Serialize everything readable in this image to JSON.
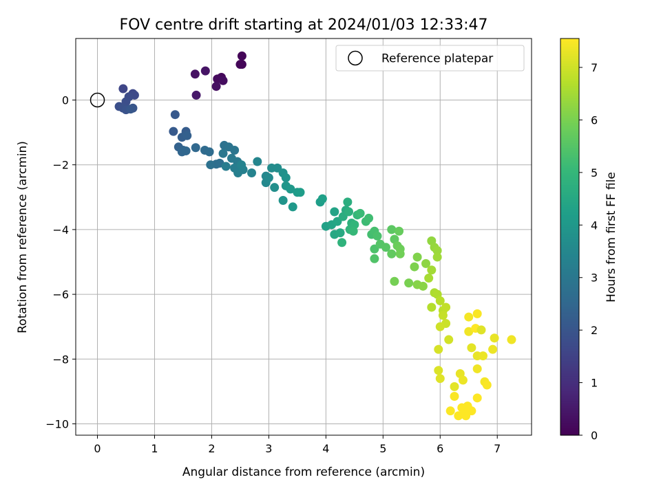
{
  "chart_data": {
    "type": "scatter",
    "title": "FOV centre drift starting at 2024/01/03 12:33:47",
    "xlabel": "Angular distance from reference (arcmin)",
    "ylabel": "Rotation from reference (arcmin)",
    "xlim": [
      -0.38,
      7.6
    ],
    "ylim": [
      -10.35,
      1.9
    ],
    "xticks": [
      0,
      1,
      2,
      3,
      4,
      5,
      6,
      7
    ],
    "yticks": [
      0,
      -2,
      -4,
      -6,
      -8,
      -10
    ],
    "grid": true,
    "legend": {
      "placement": "top-right",
      "entries": [
        "Reference platepar"
      ]
    },
    "colormap": "viridis",
    "colorbar": {
      "label": "Hours from first FF file",
      "range": [
        0,
        7.55
      ],
      "ticks": [
        0,
        1,
        2,
        3,
        4,
        5,
        6,
        7
      ]
    },
    "reference": {
      "name": "Reference platepar",
      "x": 0,
      "y": 0
    },
    "series": [
      {
        "values": [
          [
            2.53,
            1.36,
            0.1
          ],
          [
            2.5,
            1.1,
            0.1
          ],
          [
            2.53,
            1.1,
            0.1
          ],
          [
            2.17,
            0.7,
            0.15
          ],
          [
            2.1,
            0.65,
            0.2
          ],
          [
            2.2,
            0.6,
            0.25
          ],
          [
            2.08,
            0.42,
            0.3
          ],
          [
            1.71,
            0.8,
            0.35
          ],
          [
            1.89,
            0.9,
            0.4
          ],
          [
            1.73,
            0.15,
            0.5
          ],
          [
            0.45,
            0.35,
            1.6
          ],
          [
            0.62,
            0.2,
            1.65
          ],
          [
            0.65,
            0.15,
            1.7
          ],
          [
            0.55,
            0.1,
            1.75
          ],
          [
            0.5,
            -0.05,
            1.8
          ],
          [
            0.38,
            -0.2,
            1.85
          ],
          [
            0.45,
            -0.25,
            1.9
          ],
          [
            0.5,
            -0.3,
            1.95
          ],
          [
            0.62,
            -0.25,
            2.0
          ],
          [
            0.58,
            -0.28,
            2.05
          ],
          [
            1.36,
            -0.45,
            2.1
          ],
          [
            1.33,
            -0.97,
            2.15
          ],
          [
            1.55,
            -0.97,
            2.2
          ],
          [
            1.48,
            -1.15,
            2.25
          ],
          [
            1.57,
            -1.1,
            2.3
          ],
          [
            1.42,
            -1.45,
            2.35
          ],
          [
            1.5,
            -1.55,
            2.4
          ],
          [
            1.48,
            -1.6,
            2.45
          ],
          [
            1.55,
            -1.57,
            2.5
          ],
          [
            1.72,
            -1.47,
            2.55
          ],
          [
            1.88,
            -1.55,
            2.6
          ],
          [
            1.96,
            -1.6,
            2.65
          ],
          [
            2.08,
            -1.98,
            2.7
          ],
          [
            2.14,
            -1.95,
            2.75
          ],
          [
            1.98,
            -2.0,
            2.8
          ],
          [
            2.22,
            -1.4,
            2.85
          ],
          [
            2.3,
            -1.45,
            2.9
          ],
          [
            2.4,
            -1.55,
            2.95
          ],
          [
            2.2,
            -1.65,
            3.0
          ],
          [
            2.35,
            -1.8,
            3.05
          ],
          [
            2.45,
            -1.9,
            3.1
          ],
          [
            2.25,
            -2.05,
            3.15
          ],
          [
            2.4,
            -2.1,
            3.2
          ],
          [
            2.46,
            -2.25,
            3.25
          ],
          [
            2.55,
            -2.15,
            3.3
          ],
          [
            2.52,
            -2.0,
            3.35
          ],
          [
            2.7,
            -2.25,
            3.4
          ],
          [
            2.8,
            -1.9,
            3.45
          ],
          [
            2.95,
            -2.35,
            3.5
          ],
          [
            2.95,
            -2.55,
            3.55
          ],
          [
            3.0,
            -2.4,
            3.6
          ],
          [
            3.05,
            -2.1,
            3.65
          ],
          [
            3.15,
            -2.1,
            3.7
          ],
          [
            3.1,
            -2.7,
            3.75
          ],
          [
            3.25,
            -2.25,
            3.8
          ],
          [
            3.3,
            -2.4,
            3.85
          ],
          [
            3.25,
            -3.1,
            3.9
          ],
          [
            3.3,
            -2.65,
            3.95
          ],
          [
            3.38,
            -2.75,
            4.0
          ],
          [
            3.42,
            -3.3,
            4.05
          ],
          [
            3.5,
            -2.85,
            4.1
          ],
          [
            3.55,
            -2.85,
            4.15
          ],
          [
            3.9,
            -3.15,
            4.2
          ],
          [
            3.94,
            -3.05,
            4.25
          ],
          [
            4.0,
            -3.9,
            4.3
          ],
          [
            4.15,
            -3.45,
            4.35
          ],
          [
            4.1,
            -3.85,
            4.4
          ],
          [
            4.2,
            -3.75,
            4.45
          ],
          [
            4.15,
            -4.15,
            4.5
          ],
          [
            4.25,
            -4.1,
            4.55
          ],
          [
            4.35,
            -3.4,
            4.6
          ],
          [
            4.3,
            -3.6,
            4.65
          ],
          [
            4.38,
            -3.15,
            4.7
          ],
          [
            4.4,
            -3.45,
            4.75
          ],
          [
            4.45,
            -3.8,
            4.8
          ],
          [
            4.28,
            -4.4,
            4.85
          ],
          [
            4.42,
            -4.0,
            4.9
          ],
          [
            4.5,
            -3.85,
            4.95
          ],
          [
            4.55,
            -3.55,
            5.0
          ],
          [
            4.48,
            -4.05,
            5.05
          ],
          [
            4.6,
            -3.5,
            5.1
          ],
          [
            4.7,
            -3.75,
            5.15
          ],
          [
            4.75,
            -3.65,
            5.2
          ],
          [
            4.8,
            -4.15,
            5.25
          ],
          [
            4.85,
            -4.05,
            5.3
          ],
          [
            4.9,
            -4.2,
            5.35
          ],
          [
            4.85,
            -4.6,
            5.4
          ],
          [
            4.85,
            -4.9,
            5.45
          ],
          [
            4.95,
            -4.45,
            5.5
          ],
          [
            5.05,
            -4.55,
            5.55
          ],
          [
            5.15,
            -4.0,
            5.6
          ],
          [
            5.2,
            -4.3,
            5.65
          ],
          [
            5.15,
            -4.75,
            5.7
          ],
          [
            5.28,
            -4.05,
            5.75
          ],
          [
            5.25,
            -4.5,
            5.8
          ],
          [
            5.3,
            -4.6,
            5.85
          ],
          [
            5.3,
            -4.75,
            5.9
          ],
          [
            5.2,
            -5.6,
            5.95
          ],
          [
            5.45,
            -5.65,
            6.0
          ],
          [
            5.55,
            -5.15,
            6.05
          ],
          [
            5.6,
            -4.85,
            6.1
          ],
          [
            5.6,
            -5.7,
            6.15
          ],
          [
            5.7,
            -5.75,
            6.2
          ],
          [
            5.75,
            -5.05,
            6.25
          ],
          [
            5.85,
            -4.35,
            6.3
          ],
          [
            5.9,
            -4.55,
            6.35
          ],
          [
            5.95,
            -4.65,
            6.4
          ],
          [
            5.95,
            -4.85,
            6.45
          ],
          [
            5.85,
            -5.25,
            6.5
          ],
          [
            5.8,
            -5.5,
            6.55
          ],
          [
            5.9,
            -5.95,
            6.6
          ],
          [
            5.95,
            -6.0,
            6.65
          ],
          [
            5.85,
            -6.4,
            6.7
          ],
          [
            6.0,
            -6.2,
            6.75
          ],
          [
            6.05,
            -6.5,
            6.8
          ],
          [
            6.1,
            -6.4,
            6.85
          ],
          [
            6.05,
            -6.65,
            6.9
          ],
          [
            6.1,
            -6.9,
            6.95
          ],
          [
            6.0,
            -7.0,
            7.0
          ],
          [
            6.15,
            -7.4,
            7.05
          ],
          [
            5.97,
            -7.7,
            7.1
          ],
          [
            5.97,
            -8.35,
            7.15
          ],
          [
            6.0,
            -8.6,
            7.2
          ],
          [
            6.25,
            -8.85,
            7.25
          ],
          [
            6.35,
            -8.45,
            7.3
          ],
          [
            6.4,
            -8.65,
            7.35
          ],
          [
            6.5,
            -7.15,
            7.4
          ],
          [
            6.5,
            -6.7,
            7.45
          ],
          [
            6.65,
            -6.6,
            7.5
          ],
          [
            6.62,
            -7.05,
            7.55
          ],
          [
            6.72,
            -7.1,
            7.2
          ],
          [
            6.55,
            -7.65,
            7.25
          ],
          [
            6.65,
            -7.9,
            7.3
          ],
          [
            6.75,
            -7.9,
            7.35
          ],
          [
            6.65,
            -8.3,
            7.4
          ],
          [
            6.78,
            -8.7,
            7.45
          ],
          [
            6.82,
            -8.8,
            7.5
          ],
          [
            6.95,
            -7.35,
            7.3
          ],
          [
            6.92,
            -7.7,
            7.35
          ],
          [
            7.25,
            -7.4,
            7.4
          ],
          [
            6.25,
            -9.15,
            7.5
          ],
          [
            6.18,
            -9.6,
            7.52
          ],
          [
            6.32,
            -9.75,
            7.54
          ],
          [
            6.45,
            -9.75,
            7.55
          ],
          [
            6.55,
            -9.6,
            7.55
          ],
          [
            6.48,
            -9.45,
            7.55
          ],
          [
            6.38,
            -9.5,
            7.55
          ],
          [
            6.65,
            -9.2,
            7.55
          ],
          [
            6.42,
            -9.7,
            7.55
          ],
          [
            6.5,
            -9.55,
            7.55
          ]
        ]
      }
    ]
  }
}
